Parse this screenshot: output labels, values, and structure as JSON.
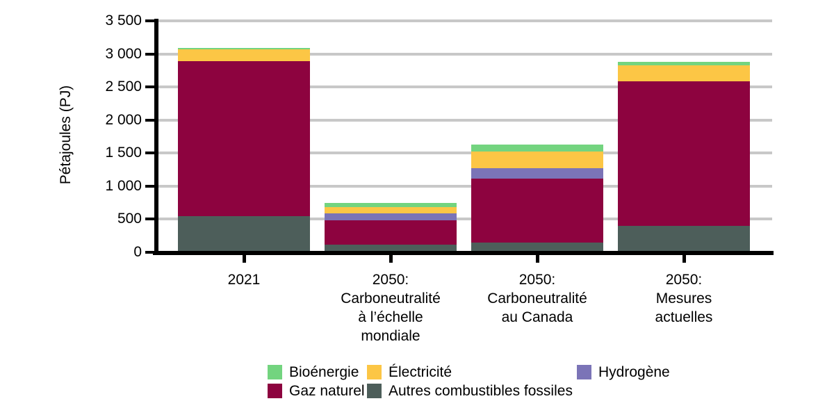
{
  "chart_data": {
    "type": "bar",
    "stacked": true,
    "title": "",
    "xlabel": "",
    "ylabel": "Pétajoules (PJ)",
    "ylim": [
      0,
      3500
    ],
    "ytick_step": 500,
    "ytick_labels": [
      "0",
      "500",
      "1 000",
      "1 500",
      "2 000",
      "2 500",
      "3 000",
      "3 500"
    ],
    "grid": "horizontal",
    "legend_position": "bottom",
    "categories": [
      {
        "key": "2021",
        "label_lines": [
          "2021"
        ]
      },
      {
        "key": "2050-carboneutralite-mondiale",
        "label_lines": [
          "2050:",
          "Carboneutralité",
          "à l’échelle",
          "mondiale"
        ]
      },
      {
        "key": "2050-carboneutralite-canada",
        "label_lines": [
          "2050:",
          "Carboneutralité",
          "au Canada"
        ]
      },
      {
        "key": "2050-mesures-actuelles",
        "label_lines": [
          "2050:",
          "Mesures",
          "actuelles"
        ]
      }
    ],
    "series": [
      {
        "key": "autres-combustibles-fossiles",
        "name": "Autres combustibles fossiles",
        "color": "#4d5e5a",
        "values": [
          550,
          115,
          150,
          400
        ]
      },
      {
        "key": "gaz-naturel",
        "name": "Gaz naturel",
        "color": "#8d033f",
        "values": [
          2340,
          370,
          960,
          2190
        ]
      },
      {
        "key": "hydrogene",
        "name": "Hydrogène",
        "color": "#7b74b7",
        "values": [
          0,
          100,
          165,
          0
        ]
      },
      {
        "key": "electricite",
        "name": "Électricité",
        "color": "#fcc645",
        "values": [
          180,
          100,
          245,
          240
        ]
      },
      {
        "key": "bioenergie",
        "name": "Bioénergie",
        "color": "#73d47f",
        "values": [
          20,
          65,
          110,
          55
        ]
      }
    ],
    "series_totals": [
      3090,
      750,
      1630,
      2885
    ],
    "legend_order": [
      "bioenergie",
      "electricite",
      "hydrogene",
      "gaz-naturel",
      "autres-combustibles-fossiles"
    ],
    "colors": {
      "bioenergie": "#73d47f",
      "electricite": "#fcc645",
      "hydrogene": "#7b74b7",
      "gaz_naturel": "#8d033f",
      "autres_combustibles_fossiles": "#4d5e5a",
      "gridline": "#c8c8c8",
      "axis": "#000000"
    }
  }
}
